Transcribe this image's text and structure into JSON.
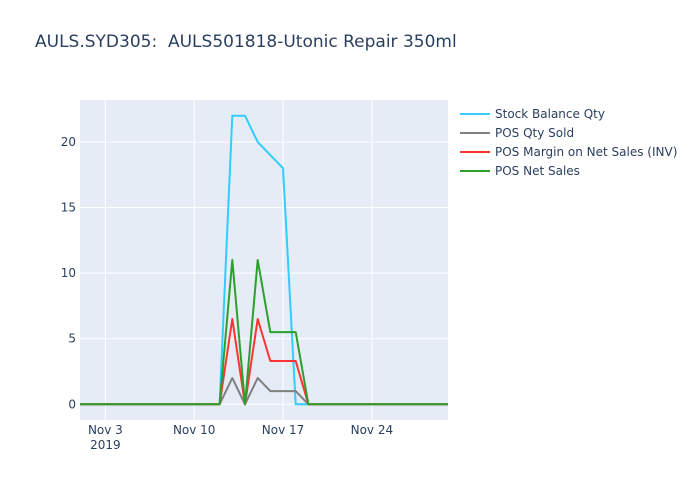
{
  "title": "AULS.SYD305:  AULS501818-Utonic Repair 350ml",
  "chart_data": {
    "type": "line",
    "x_dates": [
      "2019-10-31",
      "2019-11-01",
      "2019-11-02",
      "2019-11-03",
      "2019-11-04",
      "2019-11-05",
      "2019-11-06",
      "2019-11-07",
      "2019-11-08",
      "2019-11-09",
      "2019-11-10",
      "2019-11-11",
      "2019-11-12",
      "2019-11-13",
      "2019-11-14",
      "2019-11-15",
      "2019-11-16",
      "2019-11-17",
      "2019-11-18",
      "2019-11-19",
      "2019-11-20",
      "2019-11-21",
      "2019-11-22",
      "2019-11-23",
      "2019-11-24",
      "2019-11-25",
      "2019-11-26",
      "2019-11-27",
      "2019-11-28",
      "2019-11-29"
    ],
    "xlim": [
      "2019-11-01",
      "2019-11-30"
    ],
    "ylim": [
      -1.2,
      23.2
    ],
    "y_ticks": [
      0,
      5,
      10,
      15,
      20
    ],
    "x_ticks": [
      {
        "date": "2019-11-03",
        "label": "Nov 3",
        "sublabel": "2019"
      },
      {
        "date": "2019-11-10",
        "label": "Nov 10",
        "sublabel": ""
      },
      {
        "date": "2019-11-17",
        "label": "Nov 17",
        "sublabel": ""
      },
      {
        "date": "2019-11-24",
        "label": "Nov 24",
        "sublabel": ""
      }
    ],
    "series": [
      {
        "name": "Stock Balance Qty",
        "color": "#33ccff",
        "points": [
          [
            "2019-11-01",
            0
          ],
          [
            "2019-11-11",
            0
          ],
          [
            "2019-11-12",
            0
          ],
          [
            "2019-11-13",
            22
          ],
          [
            "2019-11-14",
            22
          ],
          [
            "2019-11-15",
            20
          ],
          [
            "2019-11-16",
            19
          ],
          [
            "2019-11-17",
            18
          ],
          [
            "2019-11-18",
            0
          ],
          [
            "2019-11-19",
            0
          ],
          [
            "2019-11-30",
            0
          ]
        ]
      },
      {
        "name": "POS Qty Sold",
        "color": "#808080",
        "points": [
          [
            "2019-11-01",
            0
          ],
          [
            "2019-11-12",
            0
          ],
          [
            "2019-11-13",
            2
          ],
          [
            "2019-11-14",
            0
          ],
          [
            "2019-11-15",
            2
          ],
          [
            "2019-11-16",
            1
          ],
          [
            "2019-11-17",
            1
          ],
          [
            "2019-11-18",
            1
          ],
          [
            "2019-11-19",
            0
          ],
          [
            "2019-11-30",
            0
          ]
        ]
      },
      {
        "name": "POS Margin on Net Sales (INV)",
        "color": "#ff3333",
        "points": [
          [
            "2019-11-01",
            0
          ],
          [
            "2019-11-12",
            0
          ],
          [
            "2019-11-13",
            6.5
          ],
          [
            "2019-11-14",
            0
          ],
          [
            "2019-11-15",
            6.5
          ],
          [
            "2019-11-16",
            3.3
          ],
          [
            "2019-11-17",
            3.3
          ],
          [
            "2019-11-18",
            3.3
          ],
          [
            "2019-11-19",
            0
          ],
          [
            "2019-11-30",
            0
          ]
        ]
      },
      {
        "name": "POS Net Sales",
        "color": "#2ca02c",
        "points": [
          [
            "2019-11-01",
            0
          ],
          [
            "2019-11-12",
            0
          ],
          [
            "2019-11-13",
            11
          ],
          [
            "2019-11-14",
            0
          ],
          [
            "2019-11-15",
            11
          ],
          [
            "2019-11-16",
            5.5
          ],
          [
            "2019-11-17",
            5.5
          ],
          [
            "2019-11-18",
            5.5
          ],
          [
            "2019-11-19",
            0
          ],
          [
            "2019-11-30",
            0
          ]
        ]
      }
    ],
    "grid": true,
    "legend_position": "right"
  }
}
